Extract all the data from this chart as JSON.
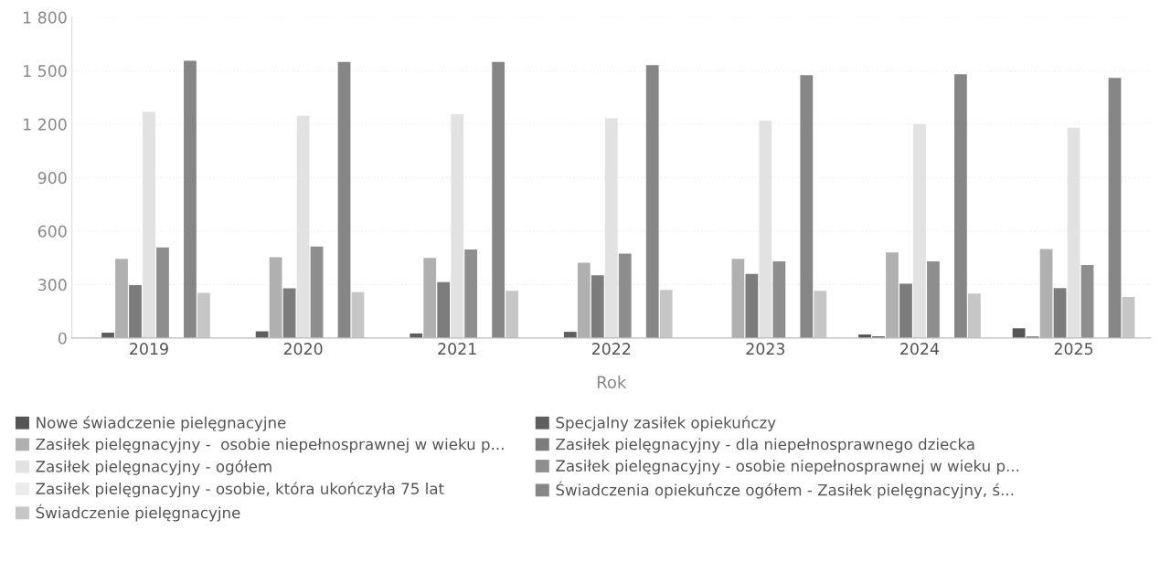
{
  "chart_data": {
    "type": "bar",
    "xlabel": "Rok",
    "categories": [
      "2019",
      "2020",
      "2021",
      "2022",
      "2023",
      "2024",
      "2025"
    ],
    "ylim": [
      0,
      1800
    ],
    "yticks": [
      0,
      300,
      600,
      900,
      {
        "value": 1200,
        "label": "1 200"
      },
      {
        "value": 1500,
        "label": "1 500"
      },
      {
        "value": 1800,
        "label": "1 800"
      }
    ],
    "grid": "y",
    "legend": "bottom",
    "series": [
      {
        "name": "Nowe świadczenie pielęgnacyjne",
        "color": "#555555",
        "values": [
          null,
          null,
          null,
          null,
          null,
          20,
          55
        ]
      },
      {
        "name": "Specjalny zasiłek opiekuńczy",
        "color": "#5e5e5e",
        "values": [
          30,
          38,
          26,
          35,
          null,
          10,
          8
        ]
      },
      {
        "name": "Zasiłek pielęgnacyjny -  osobie niepełnosprawnej w wieku p...",
        "color": "#b0b0b0",
        "values": [
          445,
          453,
          450,
          422,
          445,
          480,
          500
        ]
      },
      {
        "name": "Zasiłek pielęgnacyjny - dla niepełnosprawnego dziecka",
        "color": "#7c7c7c",
        "values": [
          297,
          279,
          314,
          352,
          360,
          305,
          280
        ]
      },
      {
        "name": "Zasiłek pielęgnacyjny - ogółem",
        "color": "#e2e2e2",
        "values": [
          1270,
          1247,
          1256,
          1233,
          1220,
          1200,
          1180
        ]
      },
      {
        "name": "Zasiłek pielęgnacyjny - osobie niepełnosprawnej w wieku p...",
        "color": "#8e8e8e",
        "values": [
          509,
          514,
          497,
          474,
          430,
          430,
          410
        ]
      },
      {
        "name": "Zasiłek pielęgnacyjny - osobie, która ukończyła 75 lat",
        "color": "#ececec",
        "values": [
          null,
          null,
          null,
          null,
          null,
          null,
          null
        ]
      },
      {
        "name": "Świadczenia opiekuńcze ogółem - Zasiłek pielęgnacyjny, ś...",
        "color": "#868686",
        "values": [
          1556,
          1549,
          1549,
          1531,
          1475,
          1480,
          1460
        ]
      },
      {
        "name": "Świadczenie pielęgnacyjne",
        "color": "#c6c6c6",
        "values": [
          253,
          258,
          265,
          270,
          265,
          250,
          230
        ]
      }
    ]
  }
}
